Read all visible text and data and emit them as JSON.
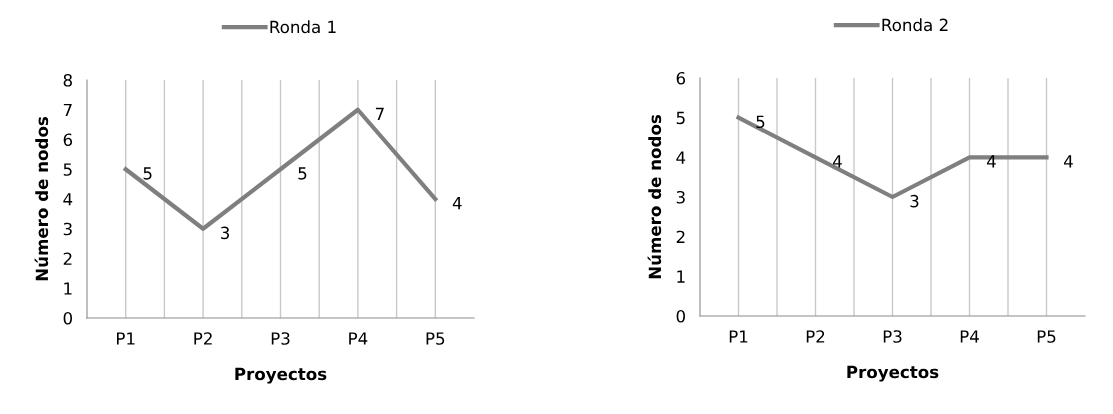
{
  "chart_data": [
    {
      "type": "line",
      "categories": [
        "P1",
        "P2",
        "P3",
        "P4",
        "P5"
      ],
      "xlabel": "Proyectos",
      "ylabel": "Número de nodos",
      "ylim": [
        0,
        8
      ],
      "yticks": [
        0,
        1,
        2,
        3,
        4,
        5,
        6,
        7,
        8
      ],
      "grid": "x",
      "legend": "top",
      "data_labels": true,
      "series": [
        {
          "name": "Ronda 1",
          "color": "#7f7f7f",
          "values": [
            5,
            3,
            5,
            7,
            4
          ]
        }
      ]
    },
    {
      "type": "line",
      "categories": [
        "P1",
        "P2",
        "P3",
        "P4",
        "P5"
      ],
      "xlabel": "Proyectos",
      "ylabel": "Número de nodos",
      "ylim": [
        0,
        6
      ],
      "yticks": [
        0,
        1,
        2,
        3,
        4,
        5,
        6
      ],
      "grid": "x",
      "legend": "top",
      "data_labels": true,
      "series": [
        {
          "name": "Ronda 2",
          "color": "#7f7f7f",
          "values": [
            5,
            4,
            3,
            4,
            4
          ]
        }
      ]
    }
  ]
}
